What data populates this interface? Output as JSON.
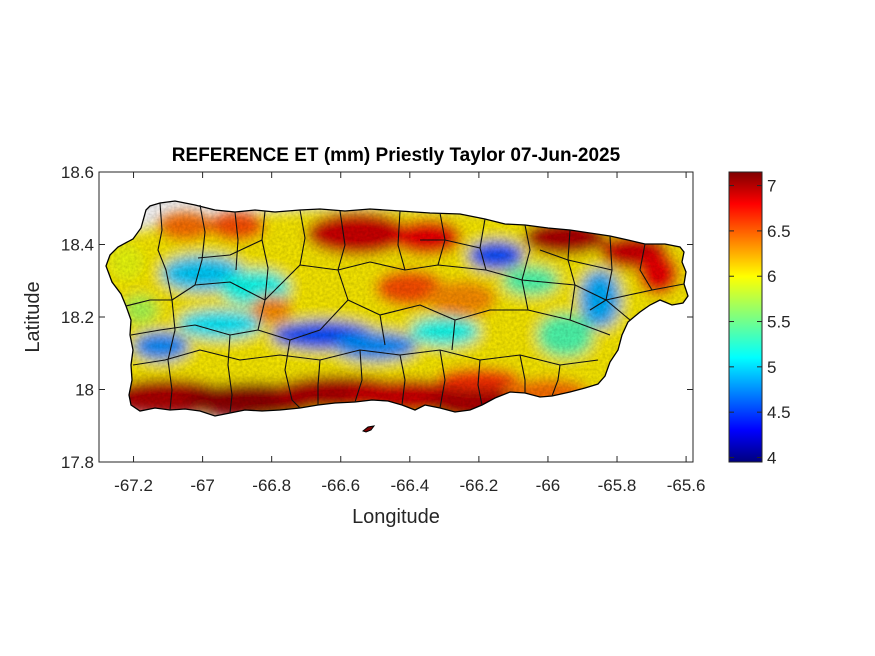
{
  "title": "REFERENCE ET (mm) Priestly Taylor 07-Jun-2025",
  "chart_data": {
    "type": "heatmap",
    "title": "REFERENCE ET (mm) Priestly Taylor 07-Jun-2025",
    "xlabel": "Longitude",
    "ylabel": "Latitude",
    "xlim": [
      -67.3,
      -65.58
    ],
    "ylim": [
      17.8,
      18.6
    ],
    "xticks": [
      -67.2,
      -67,
      -66.8,
      -66.6,
      -66.4,
      -66.2,
      -66,
      -65.8,
      -65.6
    ],
    "xtick_labels": [
      "-67.2",
      "-67",
      "-66.8",
      "-66.6",
      "-66.4",
      "-66.2",
      "-66",
      "-65.8",
      "-65.6"
    ],
    "yticks": [
      17.8,
      18,
      18.2,
      18.4,
      18.6
    ],
    "ytick_labels": [
      "17.8",
      "18",
      "18.2",
      "18.4",
      "18.6"
    ],
    "colorbar": {
      "colormap": "jet",
      "range": [
        3.95,
        7.15
      ],
      "ticks": [
        4,
        4.5,
        5,
        5.5,
        6,
        6.5,
        7
      ],
      "tick_labels": [
        "4",
        "4.5",
        "5",
        "5.5",
        "6",
        "6.5",
        "7"
      ]
    },
    "grid": false,
    "region": "Puerto Rico",
    "overlay": "municipality boundaries",
    "field_description_values": {
      "south_coast": 7.0,
      "north_coast_east": 7.0,
      "west_central_mountains": 5.0,
      "central_cordillera_min": 4.2,
      "central_plateau": 5.6,
      "east_interior": 5.5,
      "west_coast": 5.8
    }
  }
}
